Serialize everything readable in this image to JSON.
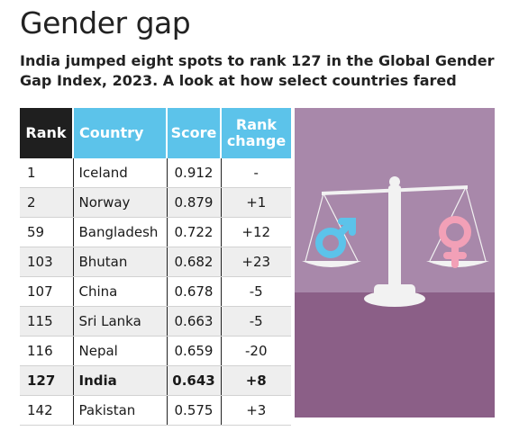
{
  "header": {
    "title": "Gender gap",
    "subtitle": "India jumped eight spots to rank 127 in the Global Gender Gap Index, 2023. A look at how select countries fared"
  },
  "chart_data": {
    "type": "table",
    "columns": [
      "Rank",
      "Country",
      "Score",
      "Rank change"
    ],
    "column_headers": {
      "rank": "Rank",
      "country": "Country",
      "score": "Score",
      "change_line1": "Rank",
      "change_line2": "change"
    },
    "rows": [
      {
        "rank": "1",
        "country": "Iceland",
        "score": "0.912",
        "change": "-"
      },
      {
        "rank": "2",
        "country": "Norway",
        "score": "0.879",
        "change": "+1"
      },
      {
        "rank": "59",
        "country": "Bangladesh",
        "score": "0.722",
        "change": "+12"
      },
      {
        "rank": "103",
        "country": "Bhutan",
        "score": "0.682",
        "change": "+23"
      },
      {
        "rank": "107",
        "country": "China",
        "score": "0.678",
        "change": "-5"
      },
      {
        "rank": "115",
        "country": "Sri Lanka",
        "score": "0.663",
        "change": "-5"
      },
      {
        "rank": "116",
        "country": "Nepal",
        "score": "0.659",
        "change": "-20"
      },
      {
        "rank": "127",
        "country": "India",
        "score": "0.643",
        "change": "+8"
      },
      {
        "rank": "142",
        "country": "Pakistan",
        "score": "0.575",
        "change": "+3"
      }
    ],
    "highlighted_country": "India"
  },
  "illustration": {
    "icons": [
      "balance-scale-icon",
      "male-symbol-icon",
      "female-symbol-icon"
    ],
    "colors": {
      "wall": "#a888aa",
      "floor": "#8b5f87",
      "scale": "#f2f2f2",
      "male": "#5cc3ea",
      "female": "#f2a0b7"
    }
  },
  "colors": {
    "header_dark": "#1f1f1f",
    "header_accent": "#5cc3ea",
    "row_alt": "#eeeeee"
  }
}
